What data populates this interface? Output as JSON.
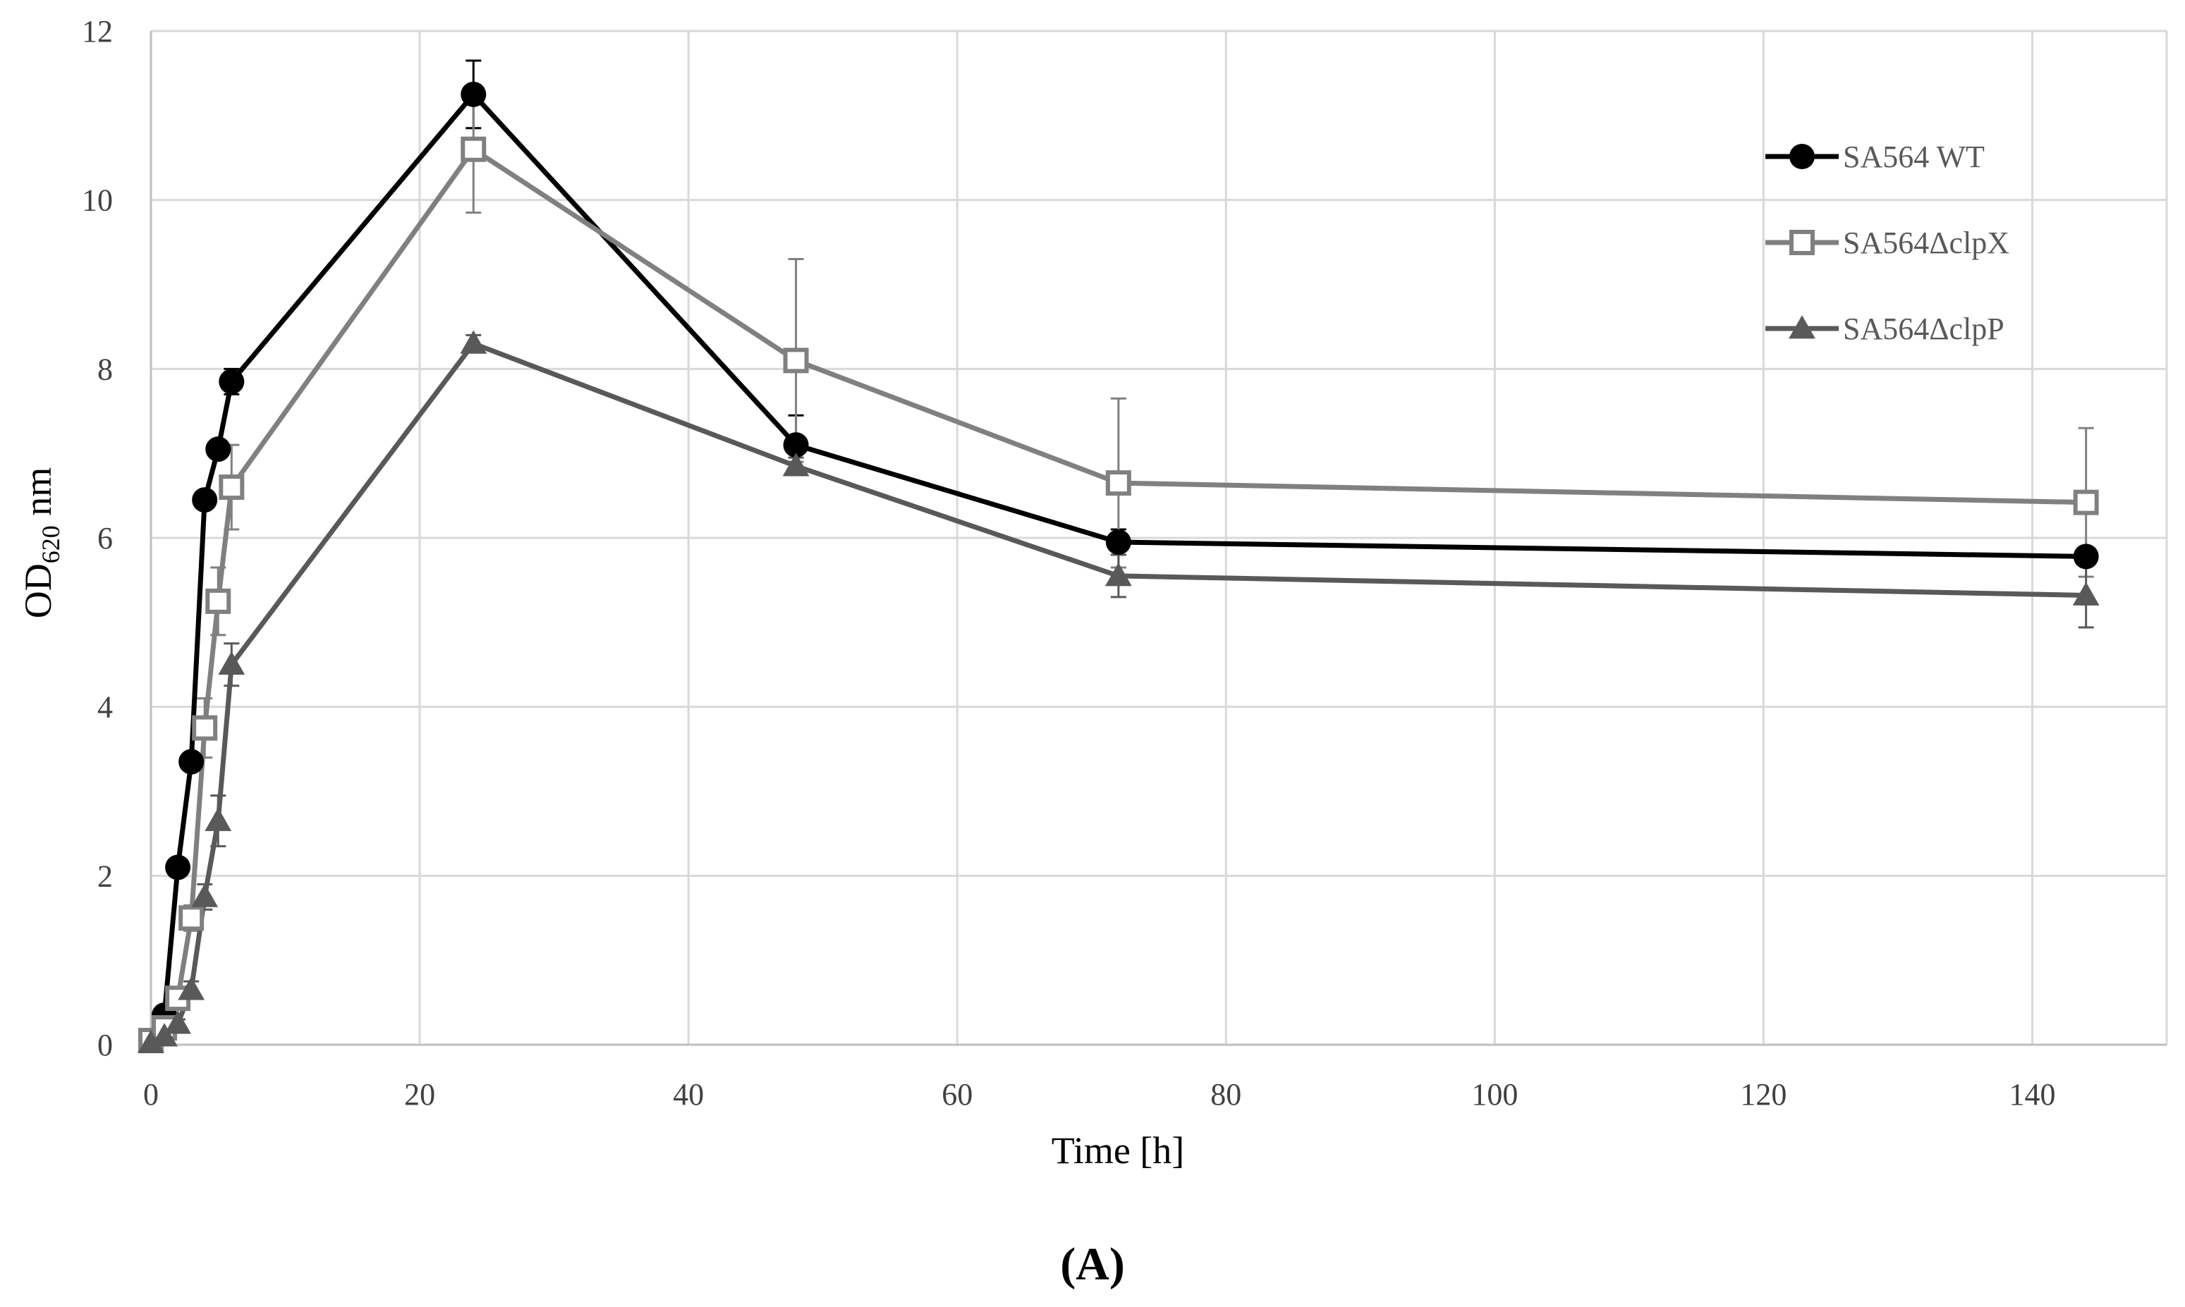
{
  "chart_data": {
    "type": "line",
    "title": "",
    "xlabel": "Time [h]",
    "ylabel": {
      "main": "OD",
      "sub": "620",
      "unit": " nm"
    },
    "xlim": [
      0,
      150
    ],
    "ylim": [
      0,
      12
    ],
    "xticks": [
      0,
      20,
      40,
      60,
      80,
      100,
      120,
      140
    ],
    "yticks": [
      0,
      2,
      4,
      6,
      8,
      10,
      12
    ],
    "grid": true,
    "legend_position": "top-right",
    "panel_label": "(A)",
    "series": [
      {
        "name": "SA564 WT",
        "color": "#000000",
        "marker": "circle",
        "x": [
          0,
          1,
          2,
          3,
          4,
          5,
          6,
          24,
          48,
          72,
          144
        ],
        "y": [
          0.05,
          0.35,
          2.1,
          3.35,
          6.45,
          7.05,
          7.85,
          11.25,
          7.1,
          5.95,
          5.78
        ],
        "err": [
          0.02,
          0.05,
          0.05,
          0.1,
          0.1,
          0.1,
          0.15,
          0.4,
          0.35,
          0.15,
          0.1
        ]
      },
      {
        "name": "SA564ΔclpX",
        "color": "#808080",
        "marker": "square-open",
        "x": [
          0,
          1,
          2,
          3,
          4,
          5,
          6,
          24,
          48,
          72,
          144
        ],
        "y": [
          0.05,
          0.2,
          0.55,
          1.5,
          3.75,
          5.25,
          6.6,
          10.6,
          8.1,
          6.65,
          6.42
        ],
        "err": [
          0.02,
          0.05,
          0.08,
          0.15,
          0.35,
          0.4,
          0.5,
          0.75,
          1.2,
          1.0,
          0.88
        ]
      },
      {
        "name": "SA564ΔclpP",
        "color": "#595959",
        "marker": "triangle",
        "x": [
          0,
          1,
          2,
          3,
          4,
          5,
          6,
          24,
          48,
          72,
          144
        ],
        "y": [
          0.02,
          0.1,
          0.25,
          0.65,
          1.75,
          2.65,
          4.5,
          8.3,
          6.85,
          5.55,
          5.32
        ],
        "err": [
          0.01,
          0.03,
          0.05,
          0.1,
          0.15,
          0.3,
          0.25,
          0.1,
          0.1,
          0.25,
          0.38
        ]
      }
    ]
  }
}
